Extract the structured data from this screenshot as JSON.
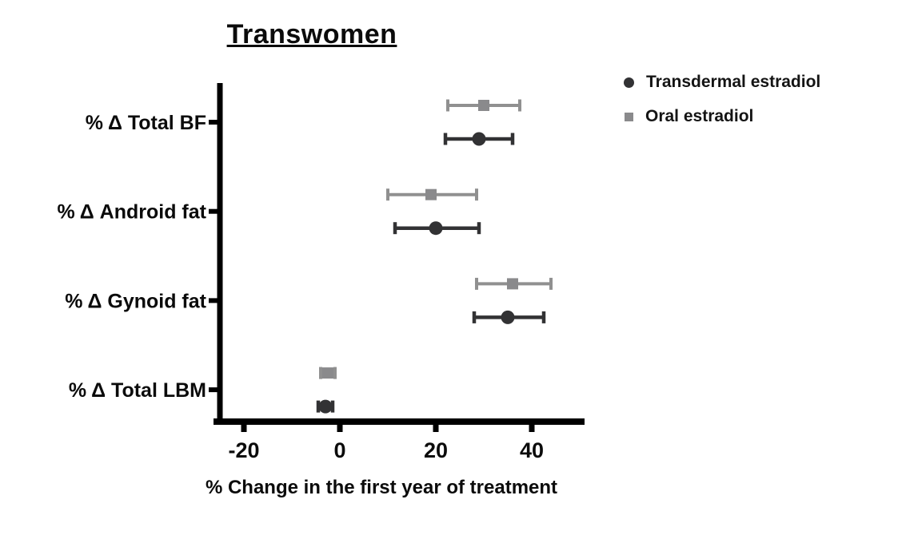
{
  "chart_data": {
    "type": "scatter",
    "subtype": "horizontal-dot-plot-with-error-bars",
    "title": "Transwomen",
    "xlabel": "% Change in the first year of treatment",
    "ylabel": "",
    "xlim": [
      -26,
      51
    ],
    "xticks": [
      -20,
      0,
      20,
      40
    ],
    "grid": false,
    "legend_position": "top-right",
    "categories": [
      "% Δ Total BF",
      "% Δ Android fat",
      "% Δ Gynoid fat",
      "% Δ Total LBM"
    ],
    "series": [
      {
        "name": "Transdermal estradiol",
        "marker": "circle",
        "color": "#323234",
        "values": [
          29,
          20,
          35,
          -3
        ],
        "ci_low": [
          22,
          11.5,
          28,
          -4.5
        ],
        "ci_high": [
          36,
          29,
          42.5,
          -1.5
        ]
      },
      {
        "name": "Oral estradiol",
        "marker": "square",
        "color": "#8a8a8c",
        "line_color": "#909090",
        "values": [
          30,
          19,
          36,
          -2.5
        ],
        "ci_low": [
          22.5,
          10,
          28.5,
          -4
        ],
        "ci_high": [
          37.5,
          28.5,
          44,
          -1
        ]
      }
    ],
    "axis_color": "#000000"
  }
}
